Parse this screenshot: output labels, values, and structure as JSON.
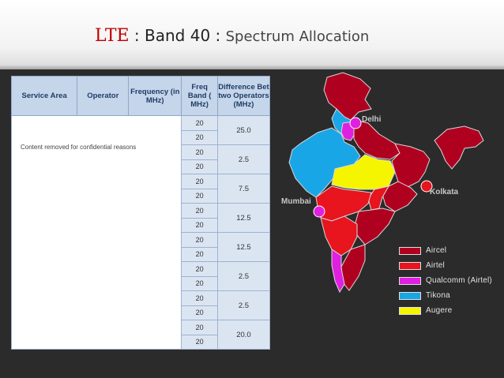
{
  "title": {
    "lte": "LTE",
    "sep1": " : ",
    "band": "Band 40",
    "sep2": " : ",
    "rest": "Spectrum Allocation"
  },
  "table": {
    "headers": {
      "service_area": "Service Area",
      "operator": "Operator",
      "frequency": "Frequency (in MHz)",
      "freq_band": "Freq Band ( MHz)",
      "difference": "Difference Bet two Operators (MHz)"
    },
    "note": "Content removed for confidential reasons",
    "freq_band_values": [
      "20",
      "20",
      "20",
      "20",
      "20",
      "20",
      "20",
      "20",
      "20",
      "20",
      "20",
      "20",
      "20",
      "20",
      "20",
      "20"
    ],
    "difference_values": [
      "25.0",
      "2.5",
      "7.5",
      "12.5",
      "12.5",
      "2.5",
      "2.5",
      "20.0"
    ]
  },
  "map": {
    "labels": {
      "delhi": "Delhi",
      "mumbai": "Mumbai",
      "kolkata": "Kolkata"
    },
    "colors": {
      "aircel": "#b00020",
      "airtel": "#e8141e",
      "qualcomm": "#e020e0",
      "tikona": "#19a6e6",
      "augere": "#f5f500"
    }
  },
  "legend": [
    {
      "label": "Aircel",
      "color": "#b00020"
    },
    {
      "label": "Airtel",
      "color": "#e8141e"
    },
    {
      "label": "Qualcomm (Airtel)",
      "color": "#e020e0"
    },
    {
      "label": "Tikona",
      "color": "#19a6e6"
    },
    {
      "label": "Augere",
      "color": "#f5f500"
    }
  ]
}
